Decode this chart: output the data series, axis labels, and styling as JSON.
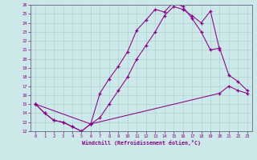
{
  "xlabel": "Windchill (Refroidissement éolien,°C)",
  "bg_color": "#cce8e8",
  "line_color": "#880088",
  "xlim": [
    -0.5,
    23.5
  ],
  "ylim": [
    12,
    26
  ],
  "xticks": [
    0,
    1,
    2,
    3,
    4,
    5,
    6,
    7,
    8,
    9,
    10,
    11,
    12,
    13,
    14,
    15,
    16,
    17,
    18,
    19,
    20,
    21,
    22,
    23
  ],
  "yticks": [
    12,
    13,
    14,
    15,
    16,
    17,
    18,
    19,
    20,
    21,
    22,
    23,
    24,
    25,
    26
  ],
  "line1_x": [
    0,
    1,
    2,
    3,
    4,
    5,
    6,
    20,
    21,
    22,
    23
  ],
  "line1_y": [
    15,
    14,
    13.2,
    13,
    12.5,
    12,
    12.8,
    16.2,
    17.0,
    16.5,
    16.2
  ],
  "line2_x": [
    0,
    1,
    2,
    3,
    4,
    5,
    6,
    7,
    8,
    9,
    10,
    11,
    12,
    13,
    14,
    15,
    16,
    17,
    18,
    19,
    20,
    21,
    22,
    23
  ],
  "line2_y": [
    15,
    14,
    13.2,
    13,
    12.5,
    12,
    12.8,
    16.2,
    17.8,
    19.2,
    20.8,
    23.2,
    24.3,
    25.5,
    25.2,
    26.3,
    25.8,
    24.5,
    23.0,
    21.0,
    21.2,
    18.2,
    17.5,
    16.5
  ],
  "line3_x": [
    0,
    6,
    7,
    8,
    9,
    10,
    11,
    12,
    13,
    14,
    15,
    16,
    17,
    18,
    19,
    20
  ],
  "line3_y": [
    15,
    12.8,
    13.5,
    15.0,
    16.5,
    18.0,
    20.0,
    21.5,
    23.0,
    24.8,
    25.8,
    25.5,
    24.8,
    24.0,
    25.3,
    21.0
  ]
}
